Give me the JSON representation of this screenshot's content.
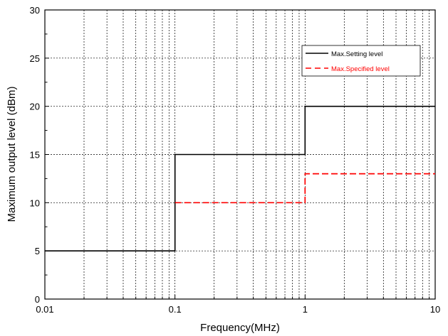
{
  "chart_data": {
    "type": "line",
    "xlabel": "Frequency(MHz)",
    "ylabel": "Maximum output level (dBm)",
    "xscale": "log",
    "xlim": [
      0.01,
      10
    ],
    "ylim": [
      0,
      30
    ],
    "x_ticks": [
      0.01,
      0.1,
      1,
      10
    ],
    "x_tick_labels": [
      "0.01",
      "0.1",
      "1",
      "10"
    ],
    "y_ticks": [
      0,
      5,
      10,
      15,
      20,
      25,
      30
    ],
    "y_tick_labels": [
      "0",
      "5",
      "10",
      "15",
      "20",
      "25",
      "30"
    ],
    "grid": true,
    "legend_position": "top-right",
    "series": [
      {
        "name": "Max.Setting level",
        "color": "#000000",
        "style": "solid",
        "points": [
          [
            0.01,
            5
          ],
          [
            0.1,
            5
          ],
          [
            0.1,
            15
          ],
          [
            1,
            15
          ],
          [
            1,
            20
          ],
          [
            10,
            20
          ]
        ]
      },
      {
        "name": "Max.Specified level",
        "color": "#ff0000",
        "style": "dashed",
        "points": [
          [
            0.1,
            10
          ],
          [
            1,
            10
          ],
          [
            1,
            13
          ],
          [
            10,
            13
          ]
        ]
      }
    ]
  }
}
